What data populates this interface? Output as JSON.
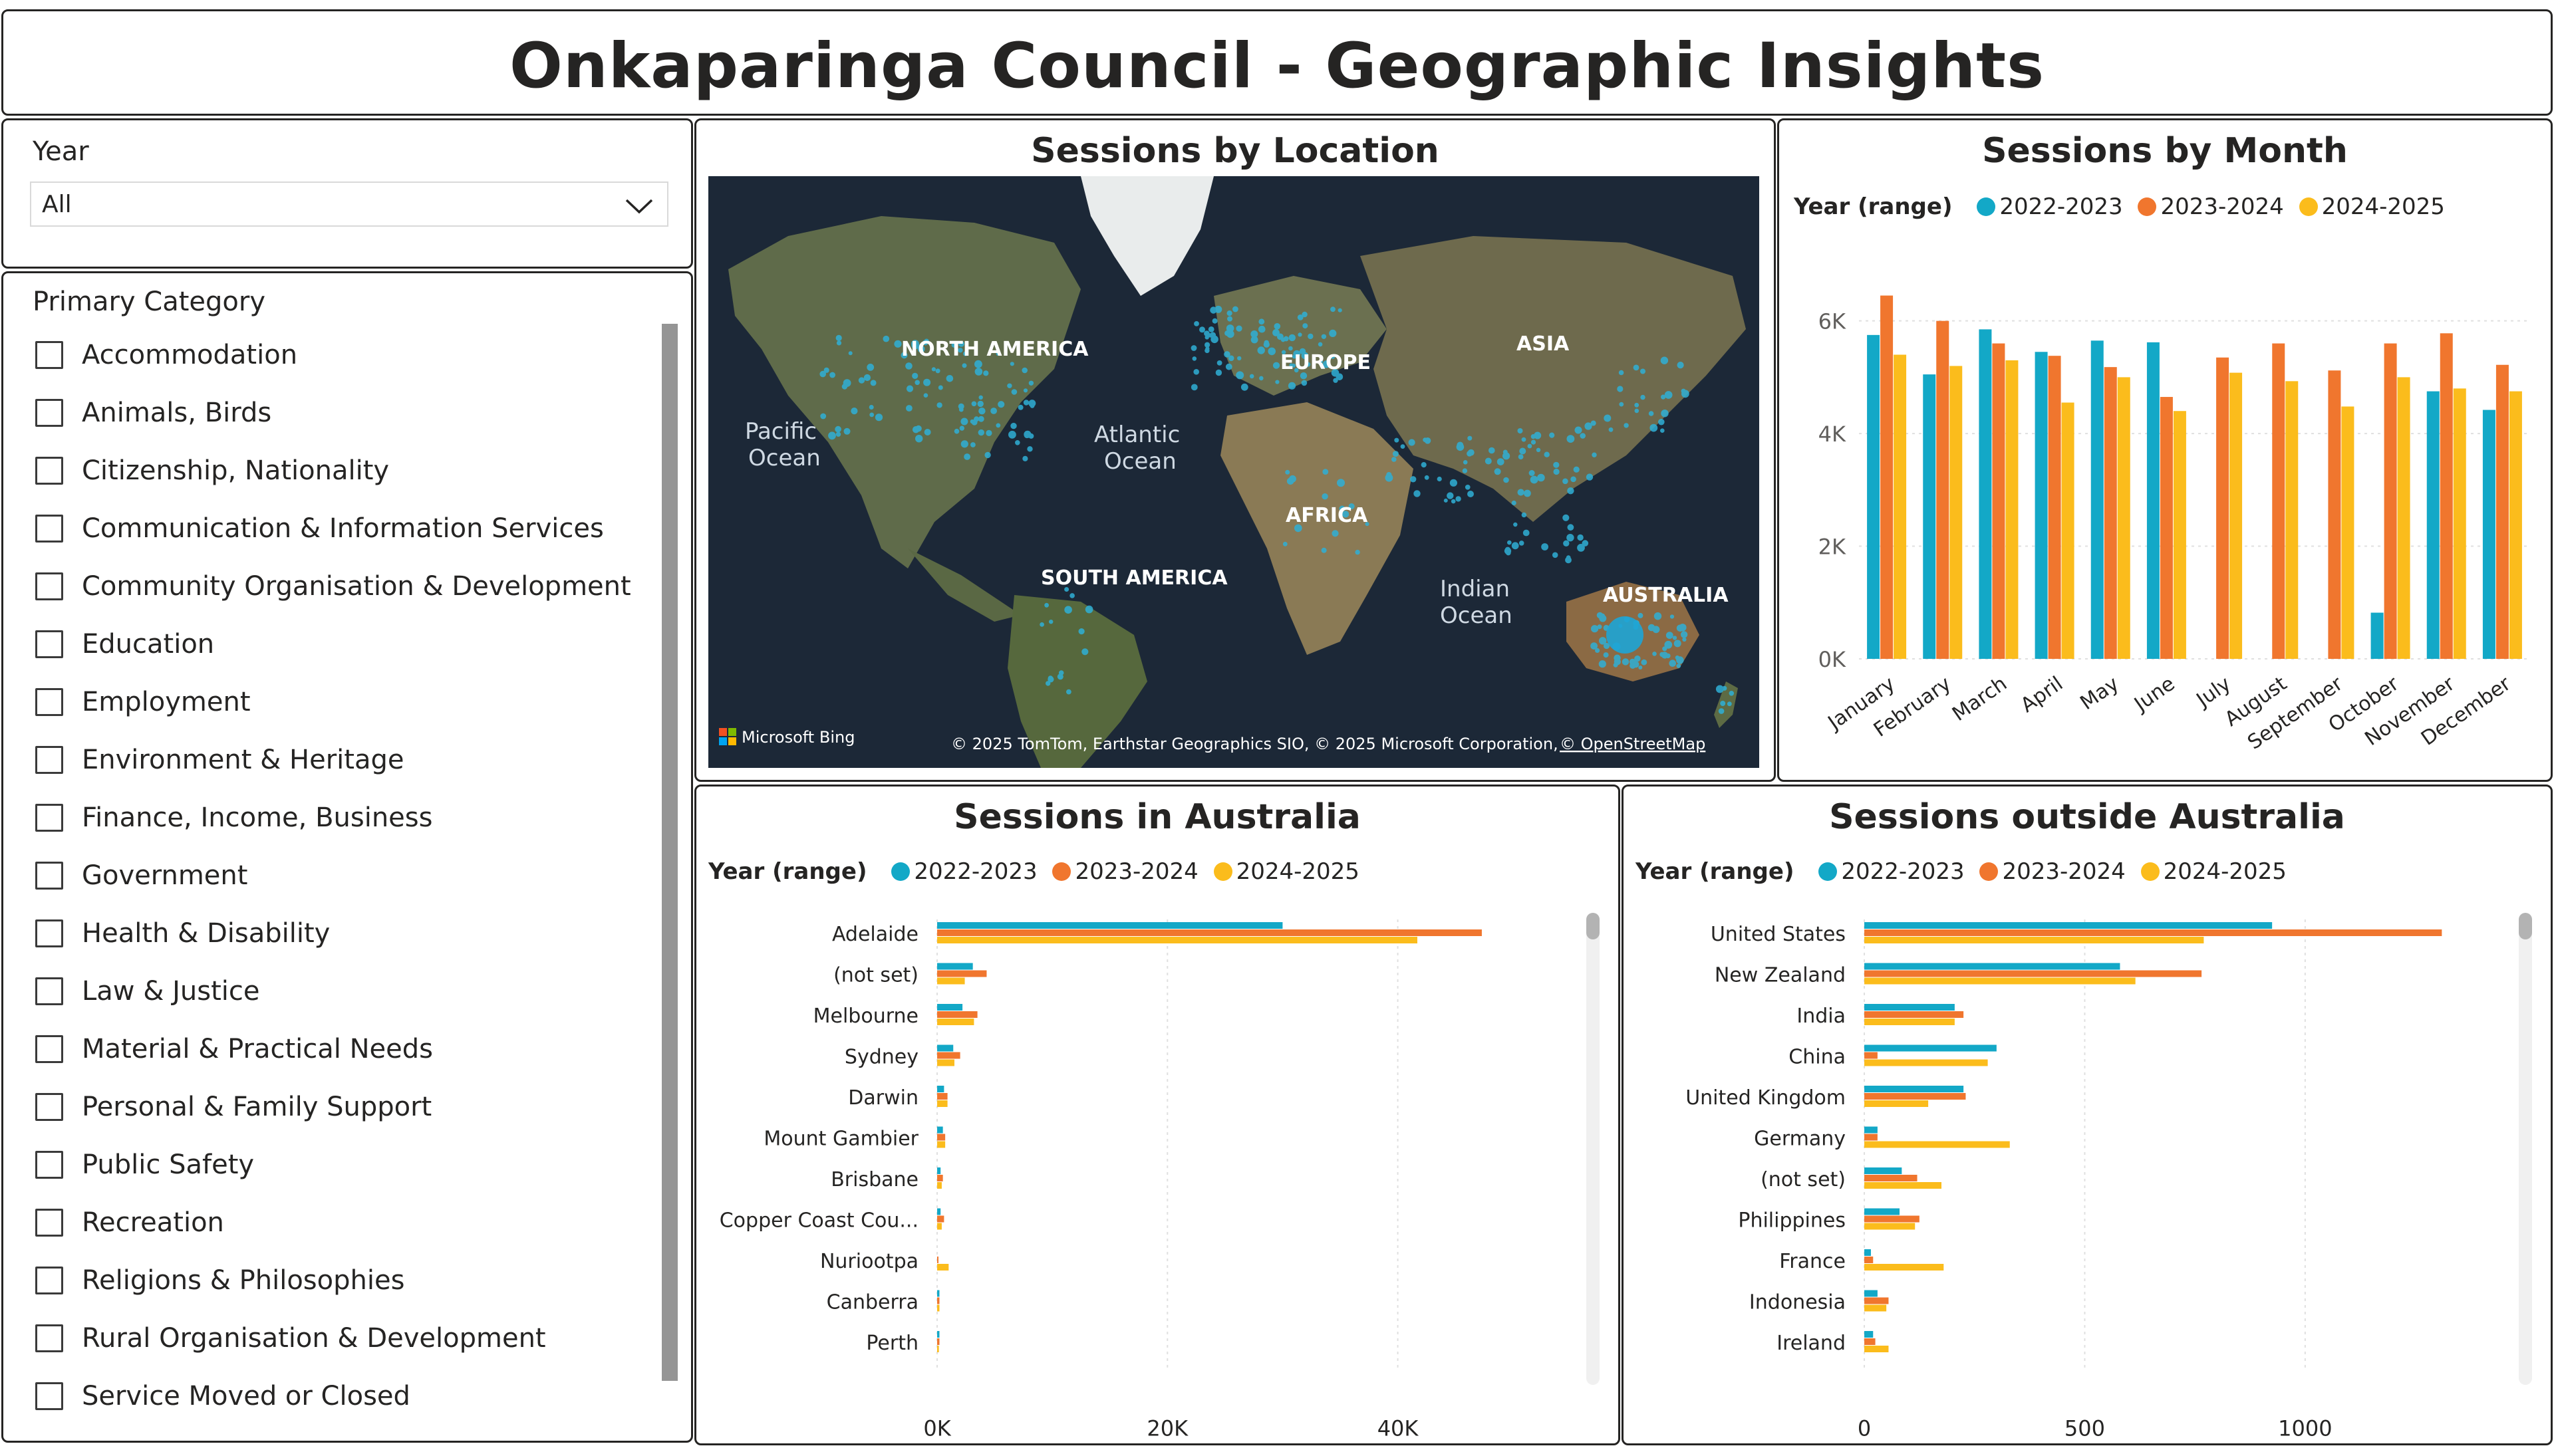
{
  "header": {
    "title": "Onkaparinga Council - Geographic Insights"
  },
  "year_filter": {
    "label": "Year",
    "value": "All"
  },
  "category_filter": {
    "label": "Primary Category",
    "items": [
      "Accommodation",
      "Animals, Birds",
      "Citizenship, Nationality",
      "Communication & Information Services",
      "Community Organisation & Development",
      "Education",
      "Employment",
      "Environment & Heritage",
      "Finance, Income, Business",
      "Government",
      "Health & Disability",
      "Law & Justice",
      "Material & Practical Needs",
      "Personal & Family Support",
      "Public Safety",
      "Recreation",
      "Religions & Philosophies",
      "Rural Organisation & Development",
      "Service Moved or Closed"
    ]
  },
  "map": {
    "title": "Sessions by Location",
    "labels": {
      "north_america": "NORTH AMERICA",
      "europe": "EUROPE",
      "asia": "ASIA",
      "pacific_1": "Pacific",
      "pacific_2": "Ocean",
      "atlantic_1": "Atlantic",
      "atlantic_2": "Ocean",
      "africa": "AFRICA",
      "south_america": "SOUTH AMERICA",
      "indian_1": "Indian",
      "indian_2": "Ocean",
      "australia": "AUSTRALIA"
    },
    "logo_text": "Microsoft Bing",
    "attribution": "© 2025 TomTom, Earthstar Geographics SIO, © 2025 Microsoft Corporation,",
    "attribution_link": "© OpenStreetMap"
  },
  "legend": {
    "title": "Year (range)",
    "series_names": [
      "2022-2023",
      "2023-2024",
      "2024-2025"
    ],
    "colors": [
      "#13A8C7",
      "#F0762E",
      "#FBBC1C"
    ]
  },
  "chart_data": [
    {
      "id": "sessions_by_month",
      "type": "bar",
      "title": "Sessions by Month",
      "categories": [
        "January",
        "February",
        "March",
        "April",
        "May",
        "June",
        "July",
        "August",
        "September",
        "October",
        "November",
        "December"
      ],
      "series": [
        {
          "name": "2022-2023",
          "values": [
            5750,
            5050,
            5850,
            5450,
            5650,
            5620,
            null,
            null,
            null,
            820,
            4750,
            4420
          ]
        },
        {
          "name": "2023-2024",
          "values": [
            6450,
            6000,
            5600,
            5380,
            5180,
            4650,
            5350,
            5600,
            5120,
            5600,
            5780,
            5220
          ]
        },
        {
          "name": "2024-2025",
          "values": [
            5400,
            5200,
            5300,
            4550,
            5000,
            4400,
            5080,
            4930,
            4480,
            5000,
            4800,
            4750
          ]
        }
      ],
      "yticks": [
        "0K",
        "2K",
        "4K",
        "6K"
      ],
      "ylim": [
        0,
        7200
      ]
    },
    {
      "id": "sessions_in_australia",
      "type": "bar",
      "orientation": "horizontal",
      "title": "Sessions in Australia",
      "categories": [
        "Adelaide",
        "(not set)",
        "Melbourne",
        "Sydney",
        "Darwin",
        "Mount Gambier",
        "Brisbane",
        "Copper Coast Cou...",
        "Nuriootpa",
        "Canberra",
        "Perth"
      ],
      "series": [
        {
          "name": "2022-2023",
          "values": [
            30000,
            3100,
            2200,
            1400,
            600,
            500,
            300,
            300,
            0,
            200,
            200
          ]
        },
        {
          "name": "2023-2024",
          "values": [
            47300,
            4300,
            3500,
            2000,
            900,
            700,
            500,
            600,
            50,
            200,
            200
          ]
        },
        {
          "name": "2024-2025",
          "values": [
            41700,
            2400,
            3200,
            1500,
            900,
            700,
            400,
            400,
            1000,
            200,
            150
          ]
        }
      ],
      "xticks": [
        "0K",
        "20K",
        "40K"
      ],
      "xlim": [
        0,
        51000
      ]
    },
    {
      "id": "sessions_outside_australia",
      "type": "bar",
      "orientation": "horizontal",
      "title": "Sessions outside Australia",
      "categories": [
        "United States",
        "New Zealand",
        "India",
        "China",
        "United Kingdom",
        "Germany",
        "(not set)",
        "Philippines",
        "France",
        "Indonesia",
        "Ireland"
      ],
      "series": [
        {
          "name": "2022-2023",
          "values": [
            925,
            580,
            205,
            300,
            225,
            30,
            85,
            80,
            15,
            30,
            20
          ]
        },
        {
          "name": "2023-2024",
          "values": [
            1310,
            765,
            225,
            30,
            230,
            30,
            120,
            125,
            20,
            55,
            25
          ]
        },
        {
          "name": "2024-2025",
          "values": [
            770,
            615,
            205,
            280,
            145,
            330,
            175,
            115,
            180,
            50,
            55
          ]
        }
      ],
      "xticks": [
        "0",
        "500",
        "1000"
      ],
      "xlim": [
        0,
        1400
      ]
    }
  ]
}
